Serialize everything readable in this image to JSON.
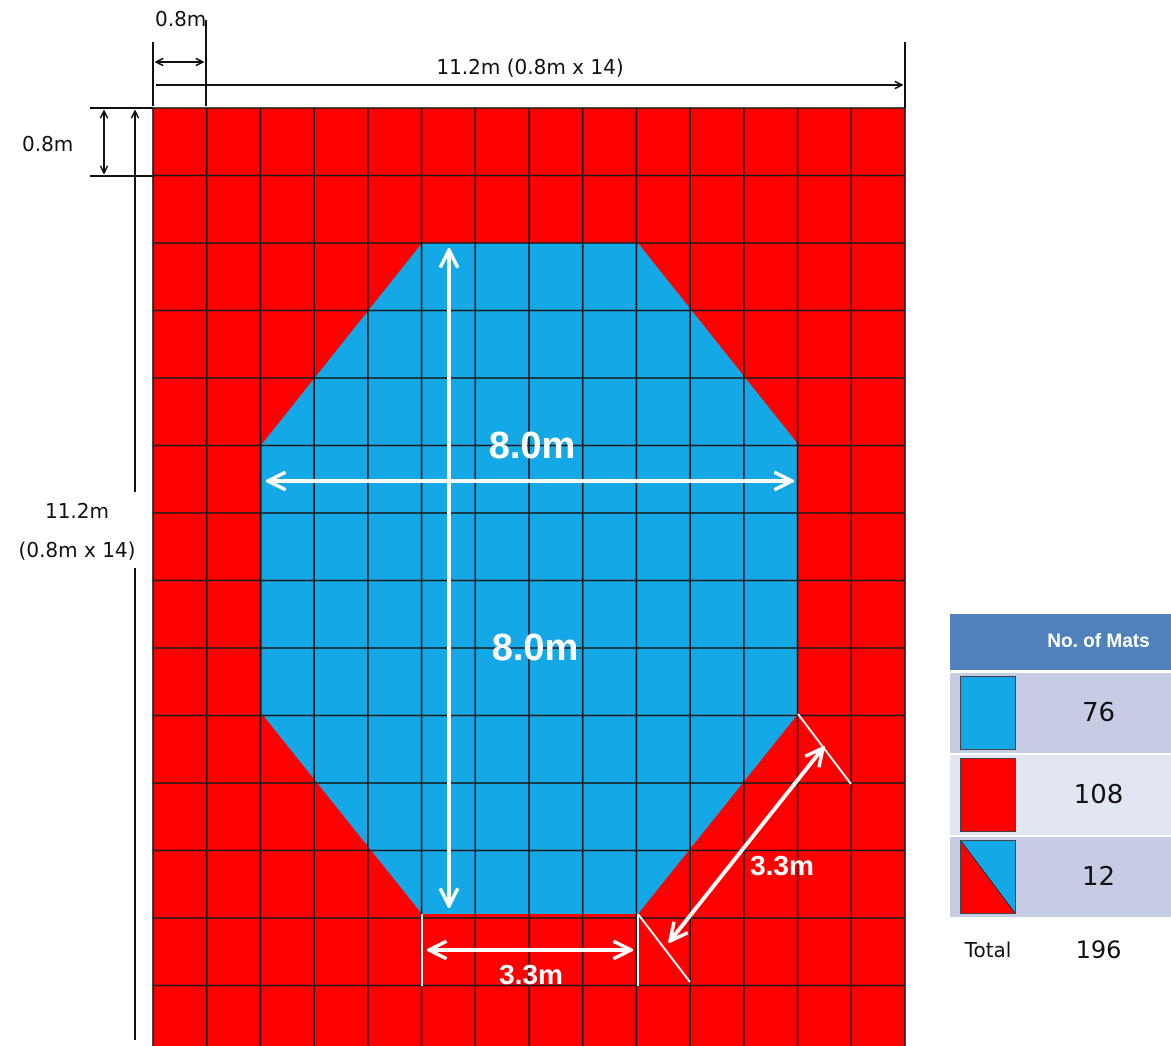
{
  "colors": {
    "mat_red": "#ff0000",
    "mat_blue": "#14a9e6",
    "header_blue": "#4f81bd",
    "row_dark": "#c5cce3",
    "row_light": "#e2e6f1"
  },
  "grid": {
    "rows": 14,
    "cols": 14
  },
  "labels": {
    "tile_width": "0.8m",
    "total_width": "11.2m (0.8m x 14)",
    "tile_height": "0.8m",
    "total_height_line1": "11.2m",
    "total_height_line2": "(0.8m x 14)",
    "octagon_width": "8.0m",
    "octagon_height": "8.0m",
    "bottom_edge": "3.3m",
    "diagonal_edge": "3.3m"
  },
  "table": {
    "header": "No. of Mats",
    "rows": [
      {
        "swatch": "blue-mat",
        "count": "76"
      },
      {
        "swatch": "red-mat",
        "count": "108"
      },
      {
        "swatch": "half-red-half-blue-mat",
        "count": "12"
      }
    ],
    "total_label": "Total",
    "total_count": "196"
  }
}
